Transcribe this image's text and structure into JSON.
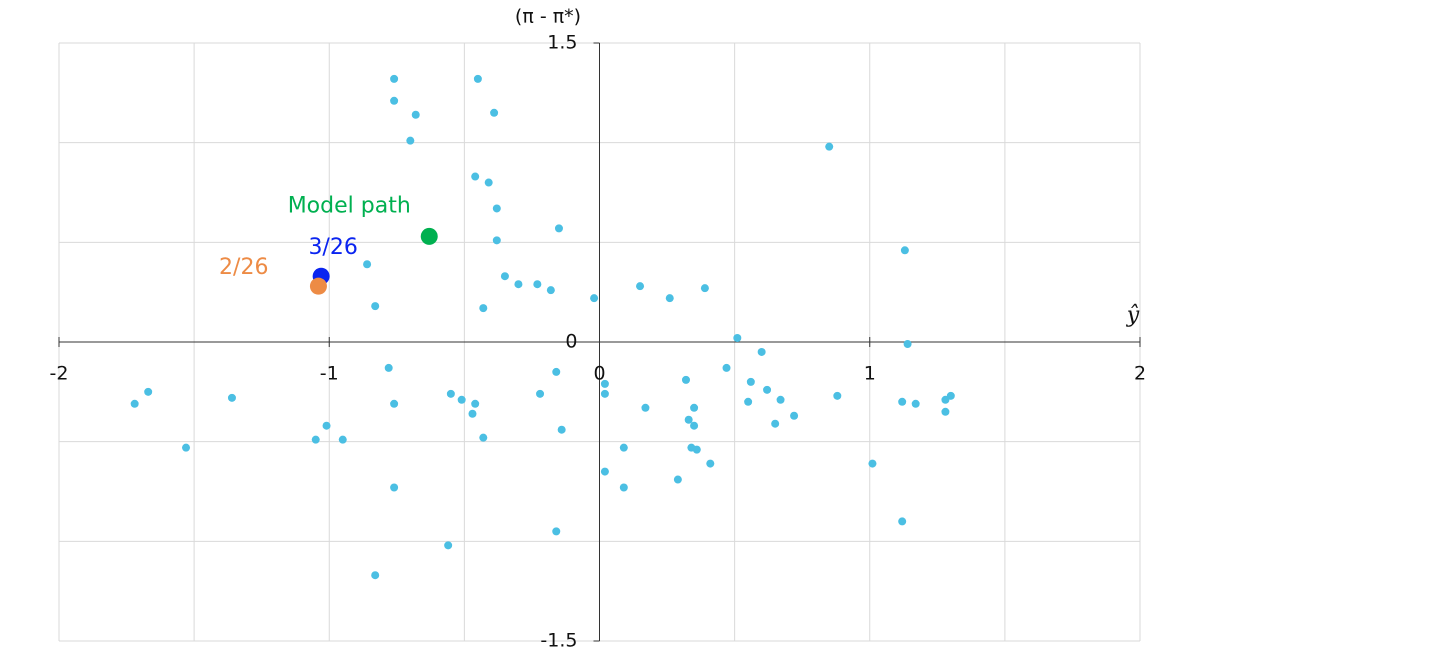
{
  "chart_data": {
    "type": "scatter",
    "y_label": "(π - π*)",
    "x_label": "ŷ",
    "xlim": [
      -2,
      2
    ],
    "ylim": [
      -1.5,
      1.5
    ],
    "xticks": [
      -2,
      -1,
      0,
      1,
      2
    ],
    "yticks": [
      -1.5,
      0,
      1.5
    ],
    "xgrid": [
      -2,
      -1.5,
      -1,
      -0.5,
      0,
      0.5,
      1,
      1.5,
      2
    ],
    "ygrid": [
      -1.5,
      -1,
      -0.5,
      0,
      0.5,
      1,
      1.5
    ],
    "grid": true,
    "points": {
      "color": "#4bbfe3",
      "x": [
        -0.76,
        -0.45,
        -0.76,
        -0.68,
        -0.39,
        -0.7,
        0.85,
        -0.46,
        -0.41,
        -0.38,
        -0.15,
        -0.38,
        1.13,
        -0.86,
        -0.35,
        -0.3,
        -0.23,
        -0.18,
        0.15,
        0.39,
        -0.02,
        0.26,
        -0.83,
        -0.43,
        0.51,
        1.14,
        0.6,
        -0.78,
        -0.16,
        0.47,
        0.32,
        0.02,
        0.56,
        -1.67,
        0.62,
        1.3,
        -1.72,
        -1.36,
        -0.55,
        -0.51,
        -0.46,
        -0.76,
        -0.22,
        0.02,
        0.88,
        0.67,
        1.28,
        1.12,
        0.55,
        1.17,
        -0.47,
        0.17,
        0.35,
        0.72,
        1.28,
        0.33,
        0.35,
        -1.01,
        0.65,
        -1.05,
        -0.95,
        -0.43,
        -0.14,
        -1.53,
        0.09,
        0.34,
        0.36,
        0.41,
        1.01,
        0.02,
        0.29,
        -0.76,
        0.09,
        1.12,
        -0.16,
        -0.56,
        -0.83
      ],
      "y": [
        1.32,
        1.32,
        1.21,
        1.14,
        1.15,
        1.01,
        0.98,
        0.83,
        0.8,
        0.67,
        0.57,
        0.51,
        0.46,
        0.39,
        0.33,
        0.29,
        0.29,
        0.26,
        0.28,
        0.27,
        0.22,
        0.22,
        0.18,
        0.17,
        0.02,
        -0.01,
        -0.05,
        -0.13,
        -0.15,
        -0.13,
        -0.19,
        -0.21,
        -0.2,
        -0.25,
        -0.24,
        -0.27,
        -0.31,
        -0.28,
        -0.26,
        -0.29,
        -0.31,
        -0.31,
        -0.26,
        -0.26,
        -0.27,
        -0.29,
        -0.29,
        -0.3,
        -0.3,
        -0.31,
        -0.36,
        -0.33,
        -0.33,
        -0.37,
        -0.35,
        -0.39,
        -0.42,
        -0.42,
        -0.41,
        -0.49,
        -0.49,
        -0.48,
        -0.44,
        -0.53,
        -0.53,
        -0.53,
        -0.54,
        -0.61,
        -0.61,
        -0.65,
        -0.69,
        -0.73,
        -0.73,
        -0.9,
        -0.95,
        -1.02,
        -1.17
      ]
    },
    "highlights": [
      {
        "label": "Model path",
        "x": -0.63,
        "y": 0.53,
        "color": "#00b050"
      },
      {
        "label": "3/26",
        "x": -1.03,
        "y": 0.33,
        "color": "#0a24f0"
      },
      {
        "label": "2/26",
        "x": -1.04,
        "y": 0.28,
        "color": "#ed8b45"
      }
    ]
  }
}
